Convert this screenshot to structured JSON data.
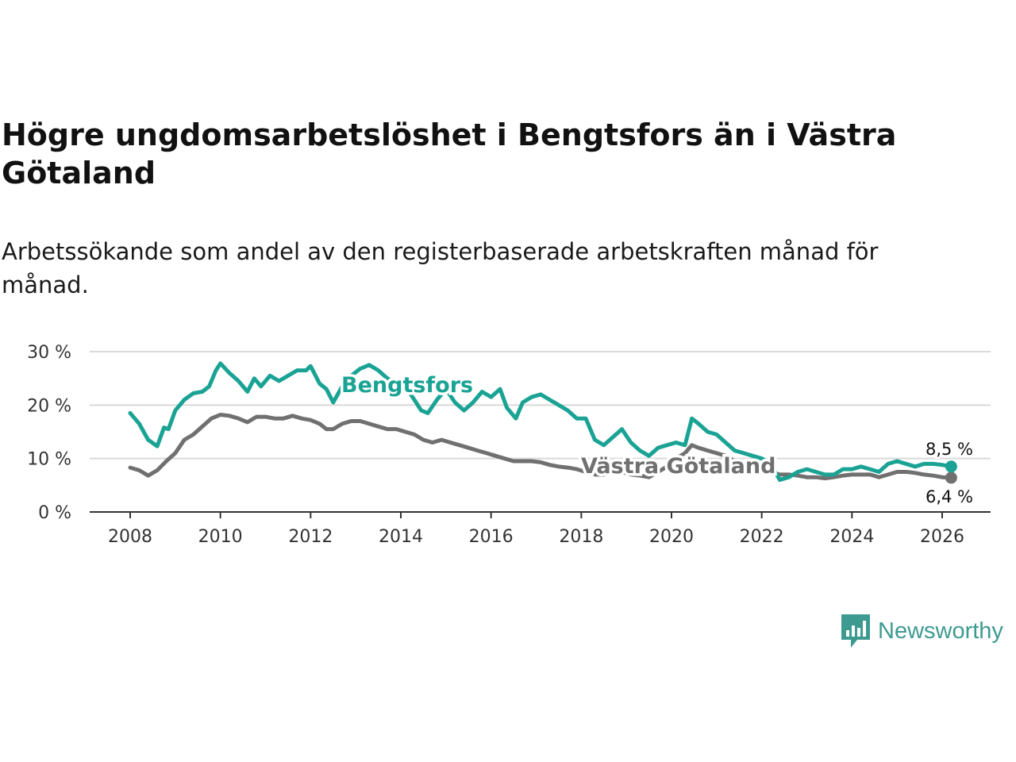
{
  "title": "Högre ungdomsarbetslöshet i Bengtsfors än i Västra Götaland",
  "subtitle": "Arbetssökande som andel av den registerbaserade arbetskraften månad för månad.",
  "brand": "Newsworthy",
  "colors": {
    "bengtsfors": "#1aa394",
    "vastra": "#707070",
    "grid": "#d9d9d9",
    "axis": "#333333",
    "brand": "#3d9a90"
  },
  "chart_data": {
    "type": "line",
    "title": "Högre ungdomsarbetslöshet i Bengtsfors än i Västra Götaland",
    "xlabel": "",
    "ylabel": "",
    "xlim": [
      2008,
      2026.2
    ],
    "ylim": [
      0,
      30
    ],
    "x_ticks": [
      2008,
      2010,
      2012,
      2014,
      2016,
      2018,
      2020,
      2022,
      2024,
      2026
    ],
    "x_tick_labels": [
      "2008",
      "2010",
      "2012",
      "2014",
      "2016",
      "2018",
      "2020",
      "2022",
      "2024",
      "2026"
    ],
    "y_ticks": [
      0,
      10,
      20,
      30
    ],
    "y_tick_labels": [
      "0 %",
      "10 %",
      "20 %",
      "30 %"
    ],
    "grid": true,
    "series": [
      {
        "name": "Bengtsfors",
        "label": "Bengtsfors",
        "end_label": "8,5 %",
        "x": [
          2008.0,
          2008.2,
          2008.4,
          2008.6,
          2008.75,
          2008.85,
          2009.0,
          2009.2,
          2009.4,
          2009.6,
          2009.75,
          2009.9,
          2010.0,
          2010.2,
          2010.4,
          2010.6,
          2010.75,
          2010.9,
          2011.1,
          2011.3,
          2011.5,
          2011.7,
          2011.9,
          2012.0,
          2012.2,
          2012.35,
          2012.5,
          2012.7,
          2012.9,
          2013.1,
          2013.3,
          2013.5,
          2013.7,
          2013.9,
          2014.1,
          2014.3,
          2014.45,
          2014.6,
          2014.8,
          2015.0,
          2015.2,
          2015.4,
          2015.6,
          2015.8,
          2016.0,
          2016.2,
          2016.35,
          2016.55,
          2016.7,
          2016.9,
          2017.1,
          2017.3,
          2017.5,
          2017.7,
          2017.9,
          2018.1,
          2018.3,
          2018.5,
          2018.7,
          2018.9,
          2019.1,
          2019.3,
          2019.5,
          2019.7,
          2019.9,
          2020.1,
          2020.3,
          2020.45,
          2020.6,
          2020.8,
          2021.0,
          2021.2,
          2021.4,
          2021.6,
          2021.8,
          2022.0,
          2022.2,
          2022.4,
          2022.6,
          2022.8,
          2023.0,
          2023.2,
          2023.4,
          2023.6,
          2023.8,
          2024.0,
          2024.2,
          2024.4,
          2024.6,
          2024.8,
          2025.0,
          2025.2,
          2025.4,
          2025.6,
          2025.8,
          2026.0,
          2026.2
        ],
        "values": [
          18.5,
          16.5,
          13.5,
          12.3,
          15.8,
          15.5,
          19.0,
          21.0,
          22.2,
          22.5,
          23.5,
          26.5,
          27.8,
          26.0,
          24.5,
          22.5,
          25.0,
          23.5,
          25.5,
          24.5,
          25.5,
          26.5,
          26.5,
          27.3,
          24.0,
          23.0,
          20.5,
          23.5,
          25.5,
          26.8,
          27.5,
          26.5,
          25.0,
          24.0,
          23.5,
          21.0,
          19.0,
          18.5,
          21.0,
          23.0,
          20.5,
          19.0,
          20.5,
          22.5,
          21.5,
          23.0,
          19.5,
          17.5,
          20.5,
          21.5,
          22.0,
          21.0,
          20.0,
          19.0,
          17.5,
          17.5,
          13.5,
          12.5,
          14.0,
          15.5,
          13.0,
          11.5,
          10.5,
          12.0,
          12.5,
          13.0,
          12.5,
          17.5,
          16.5,
          15.0,
          14.5,
          13.0,
          11.5,
          11.0,
          10.5,
          10.0,
          9.0,
          6.0,
          6.5,
          7.5,
          8.0,
          7.5,
          7.0,
          7.0,
          8.0,
          8.0,
          8.5,
          8.0,
          7.5,
          9.0,
          9.5,
          9.0,
          8.5,
          9.0,
          9.0,
          8.8,
          8.5
        ]
      },
      {
        "name": "Västra Götaland",
        "label": "Västra Götaland",
        "end_label": "6,4 %",
        "x": [
          2008.0,
          2008.2,
          2008.4,
          2008.6,
          2008.8,
          2009.0,
          2009.2,
          2009.4,
          2009.6,
          2009.8,
          2010.0,
          2010.2,
          2010.4,
          2010.6,
          2010.8,
          2011.0,
          2011.2,
          2011.4,
          2011.6,
          2011.8,
          2012.0,
          2012.2,
          2012.35,
          2012.5,
          2012.7,
          2012.9,
          2013.1,
          2013.3,
          2013.5,
          2013.7,
          2013.9,
          2014.1,
          2014.3,
          2014.5,
          2014.7,
          2014.9,
          2015.1,
          2015.3,
          2015.5,
          2015.7,
          2015.9,
          2016.1,
          2016.3,
          2016.5,
          2016.7,
          2016.9,
          2017.1,
          2017.3,
          2017.5,
          2017.7,
          2017.9,
          2018.1,
          2018.3,
          2018.5,
          2018.7,
          2018.9,
          2019.1,
          2019.3,
          2019.5,
          2019.7,
          2019.9,
          2020.1,
          2020.3,
          2020.45,
          2020.6,
          2020.8,
          2021.0,
          2021.2,
          2021.4,
          2021.6,
          2021.8,
          2022.0,
          2022.2,
          2022.4,
          2022.6,
          2022.8,
          2023.0,
          2023.2,
          2023.4,
          2023.6,
          2023.8,
          2024.0,
          2024.2,
          2024.4,
          2024.6,
          2024.8,
          2025.0,
          2025.2,
          2025.4,
          2025.6,
          2025.8,
          2026.0,
          2026.2
        ],
        "values": [
          8.3,
          7.8,
          6.8,
          7.8,
          9.5,
          11.0,
          13.5,
          14.5,
          16.0,
          17.5,
          18.2,
          18.0,
          17.5,
          16.8,
          17.8,
          17.8,
          17.5,
          17.5,
          18.0,
          17.5,
          17.2,
          16.5,
          15.5,
          15.5,
          16.5,
          17.0,
          17.0,
          16.5,
          16.0,
          15.5,
          15.5,
          15.0,
          14.5,
          13.5,
          13.0,
          13.5,
          13.0,
          12.5,
          12.0,
          11.5,
          11.0,
          10.5,
          10.0,
          9.5,
          9.5,
          9.5,
          9.3,
          8.8,
          8.5,
          8.3,
          8.0,
          7.5,
          7.0,
          7.0,
          7.5,
          7.5,
          7.0,
          6.8,
          6.5,
          7.5,
          8.5,
          10.0,
          11.0,
          12.5,
          12.0,
          11.5,
          11.0,
          10.5,
          9.5,
          9.0,
          8.5,
          8.0,
          7.5,
          7.0,
          7.0,
          6.8,
          6.5,
          6.5,
          6.3,
          6.5,
          6.8,
          7.0,
          7.0,
          7.0,
          6.5,
          7.0,
          7.5,
          7.5,
          7.3,
          7.0,
          6.8,
          6.5,
          6.4
        ]
      }
    ],
    "annotations": [
      "8,5 %",
      "6,4 %"
    ]
  }
}
